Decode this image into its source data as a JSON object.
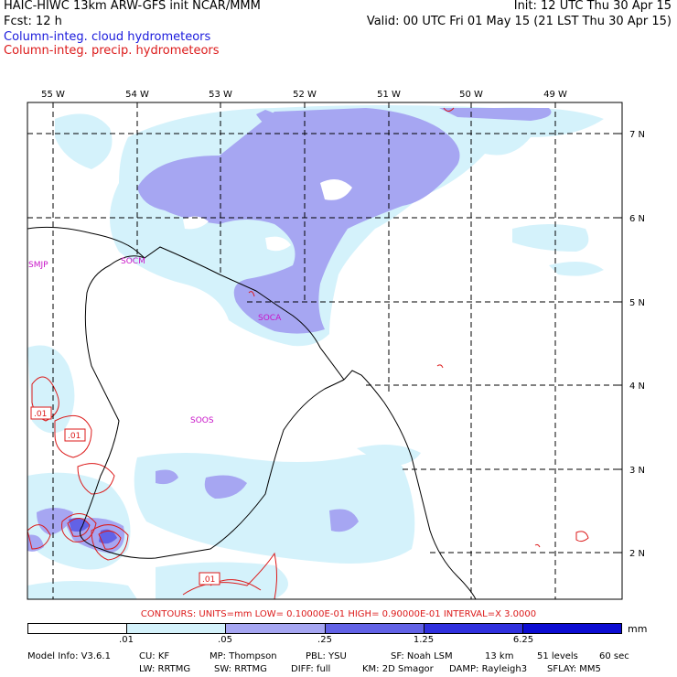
{
  "header": {
    "line1_left": "HAIC-HIWC 13km ARW-GFS init   NCAR/MMM",
    "line1_right": "Init: 12 UTC Thu 30 Apr 15",
    "line2_left": "Fcst:    12 h",
    "line2_right": "Valid: 00 UTC Fri 01 May 15 (21 LST Thu 30 Apr 15)",
    "line3": "Column-integ. cloud hydrometeors",
    "line4": "Column-integ. precip. hydrometeors"
  },
  "colors": {
    "cloud_label": "#1a1adc",
    "precip_label": "#dc1a1a",
    "shade_1": "#d4f2fb",
    "shade_2": "#a6a6f2",
    "shade_3": "#6262e6",
    "shade_4": "#3030de",
    "shade_5": "#0c0cd2",
    "contour": "#dc1a1a",
    "station": "#c814c8"
  },
  "map": {
    "lon_labels": [
      "55 W",
      "54 W",
      "53 W",
      "52 W",
      "51 W",
      "50 W",
      "49 W"
    ],
    "lat_labels": [
      "7 N",
      "6 N",
      "5 N",
      "4 N",
      "3 N",
      "2 N"
    ],
    "stations": [
      "SMJP",
      "SOCM",
      "SOCA",
      "SOOS"
    ],
    "contour_labels": [
      ".01",
      ".01",
      ".01"
    ]
  },
  "legend": {
    "contours_text": "CONTOURS:  UNITS=mm   LOW= 0.10000E-01   HIGH= 0.90000E-01   INTERVAL=X   3.0000",
    "colorbar_labels": [
      ".01",
      ".05",
      ".25",
      "1.25",
      "6.25"
    ],
    "colorbar_unit": "mm"
  },
  "model_info": {
    "line1": [
      "Model Info: V3.6.1",
      "CU: KF",
      "MP: Thompson",
      "PBL: YSU",
      "SF: Noah LSM",
      "13 km",
      "51 levels",
      "60 sec"
    ],
    "line2": [
      "LW: RRTMG",
      "SW: RRTMG",
      "DIFF: full",
      "KM: 2D Smagor",
      "DAMP: Rayleigh3",
      "SFLAY: MM5"
    ]
  }
}
